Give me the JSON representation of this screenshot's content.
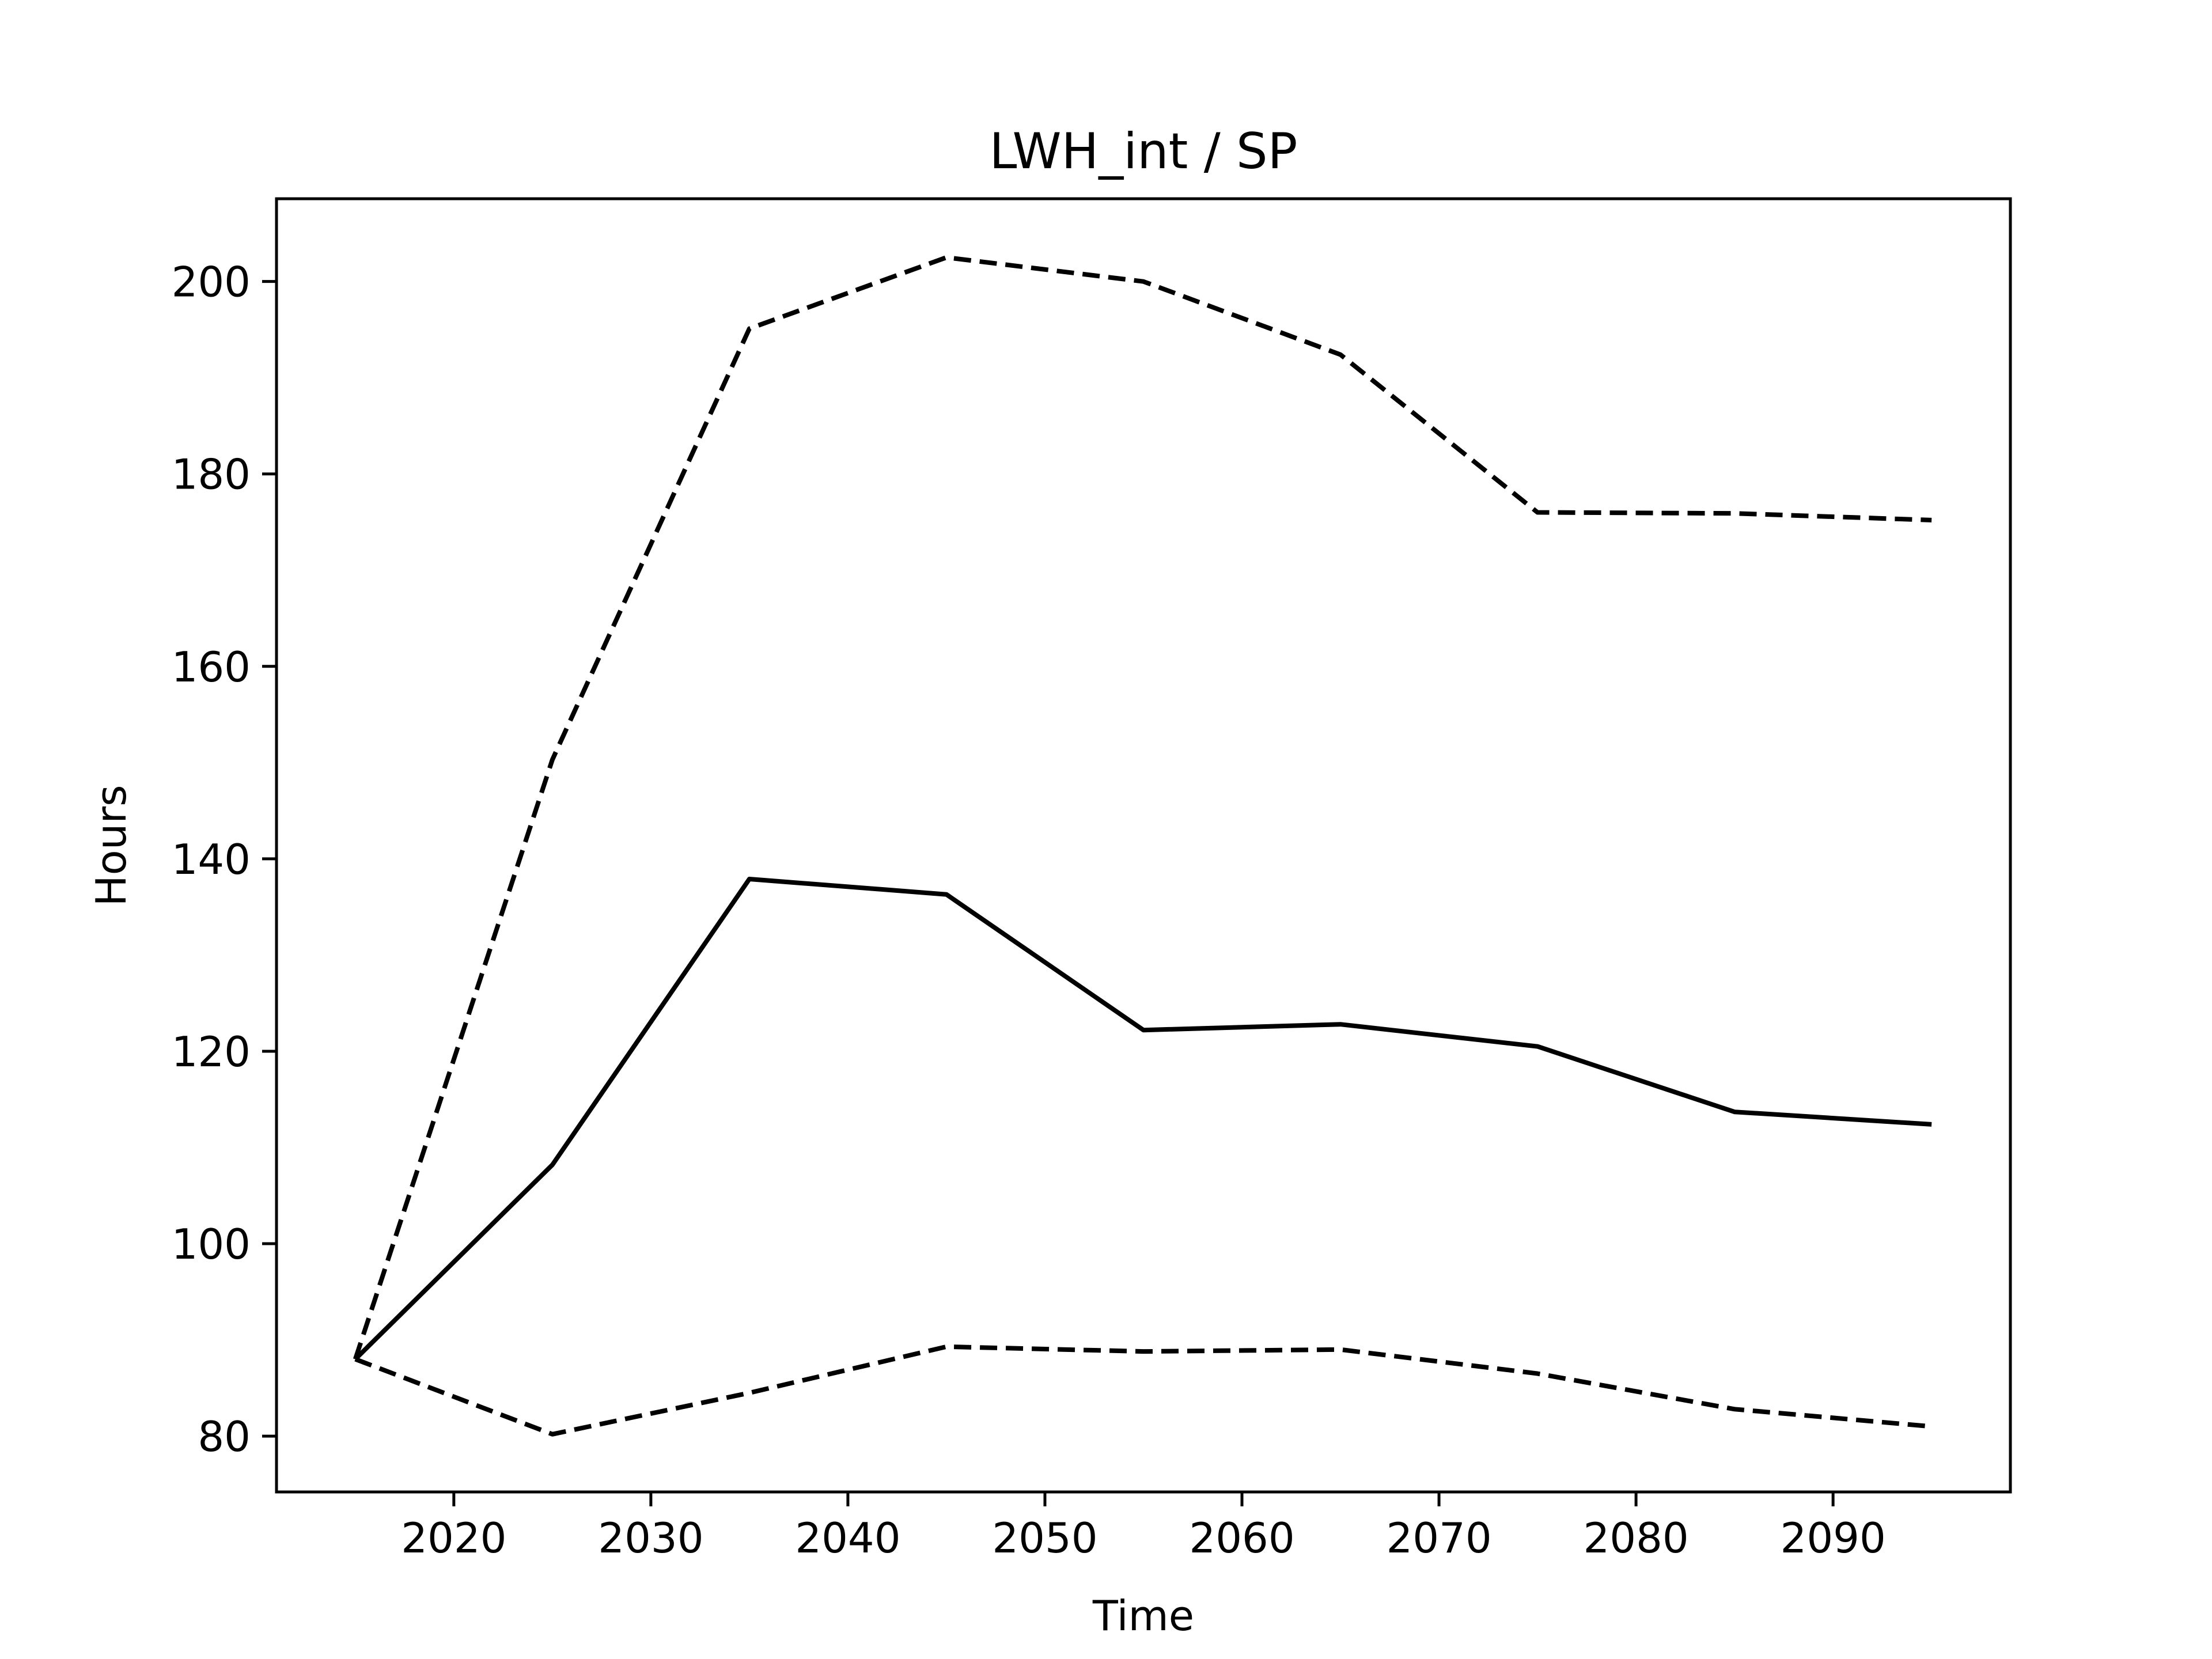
{
  "chart_data": {
    "type": "line",
    "title": "LWH_int / SP",
    "xlabel": "Time",
    "ylabel": "Hours",
    "x": [
      2015,
      2025,
      2035,
      2045,
      2055,
      2065,
      2075,
      2085,
      2095
    ],
    "xlim": [
      2011,
      2099
    ],
    "ylim": [
      74.2,
      208.6
    ],
    "xticks": [
      2020,
      2030,
      2040,
      2050,
      2060,
      2070,
      2080,
      2090
    ],
    "yticks": [
      80,
      100,
      120,
      140,
      160,
      180,
      200
    ],
    "grid": false,
    "legend": "none",
    "series": [
      {
        "style": "solid",
        "color": "#000000",
        "values": [
          88.0,
          108.2,
          137.9,
          136.3,
          122.2,
          122.8,
          120.5,
          113.7,
          112.4
        ]
      },
      {
        "style": "dashed",
        "color": "#000000",
        "values": [
          88.0,
          150.3,
          195.1,
          202.5,
          200.0,
          192.4,
          176.0,
          175.9,
          175.2
        ]
      },
      {
        "style": "dashed",
        "color": "#000000",
        "values": [
          88.0,
          80.2,
          84.5,
          89.3,
          88.8,
          89.0,
          86.5,
          82.8,
          81.0
        ]
      }
    ]
  }
}
